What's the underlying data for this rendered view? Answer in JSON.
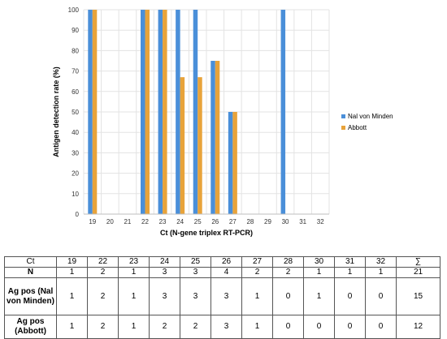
{
  "chart_data": {
    "type": "bar",
    "ylabel": "Antigen detection rate (%)",
    "xlabel": "Ct (N-gene triplex RT-PCR)",
    "ylim": [
      0,
      100
    ],
    "yticks": [
      0,
      10,
      20,
      30,
      40,
      50,
      60,
      70,
      80,
      90,
      100
    ],
    "categories": [
      "19",
      "20",
      "21",
      "22",
      "23",
      "24",
      "25",
      "26",
      "27",
      "28",
      "29",
      "30",
      "31",
      "32"
    ],
    "series": [
      {
        "name": "Nal von Minden",
        "color": "#4a8fd9",
        "values": [
          100,
          0,
          0,
          100,
          100,
          100,
          100,
          75,
          50,
          0,
          0,
          100,
          0,
          0
        ]
      },
      {
        "name": "Abbott",
        "color": "#e8a33a",
        "values": [
          100,
          0,
          0,
          100,
          100,
          67,
          67,
          75,
          50,
          0,
          0,
          0,
          0,
          0
        ]
      }
    ],
    "legend_position": "right",
    "grid": true
  },
  "table": {
    "headers": [
      "Ct",
      "19",
      "22",
      "23",
      "24",
      "25",
      "26",
      "27",
      "28",
      "30",
      "31",
      "32",
      "∑"
    ],
    "rows": [
      {
        "label": "N",
        "values": [
          "1",
          "2",
          "1",
          "3",
          "3",
          "4",
          "2",
          "2",
          "1",
          "1",
          "1",
          "21"
        ]
      },
      {
        "label": "Ag pos (Nal von Minden)",
        "values": [
          "1",
          "2",
          "1",
          "3",
          "3",
          "3",
          "1",
          "0",
          "1",
          "0",
          "0",
          "15"
        ]
      },
      {
        "label": "Ag pos (Abbott)",
        "values": [
          "1",
          "2",
          "1",
          "2",
          "2",
          "3",
          "1",
          "0",
          "0",
          "0",
          "0",
          "12"
        ]
      }
    ]
  }
}
